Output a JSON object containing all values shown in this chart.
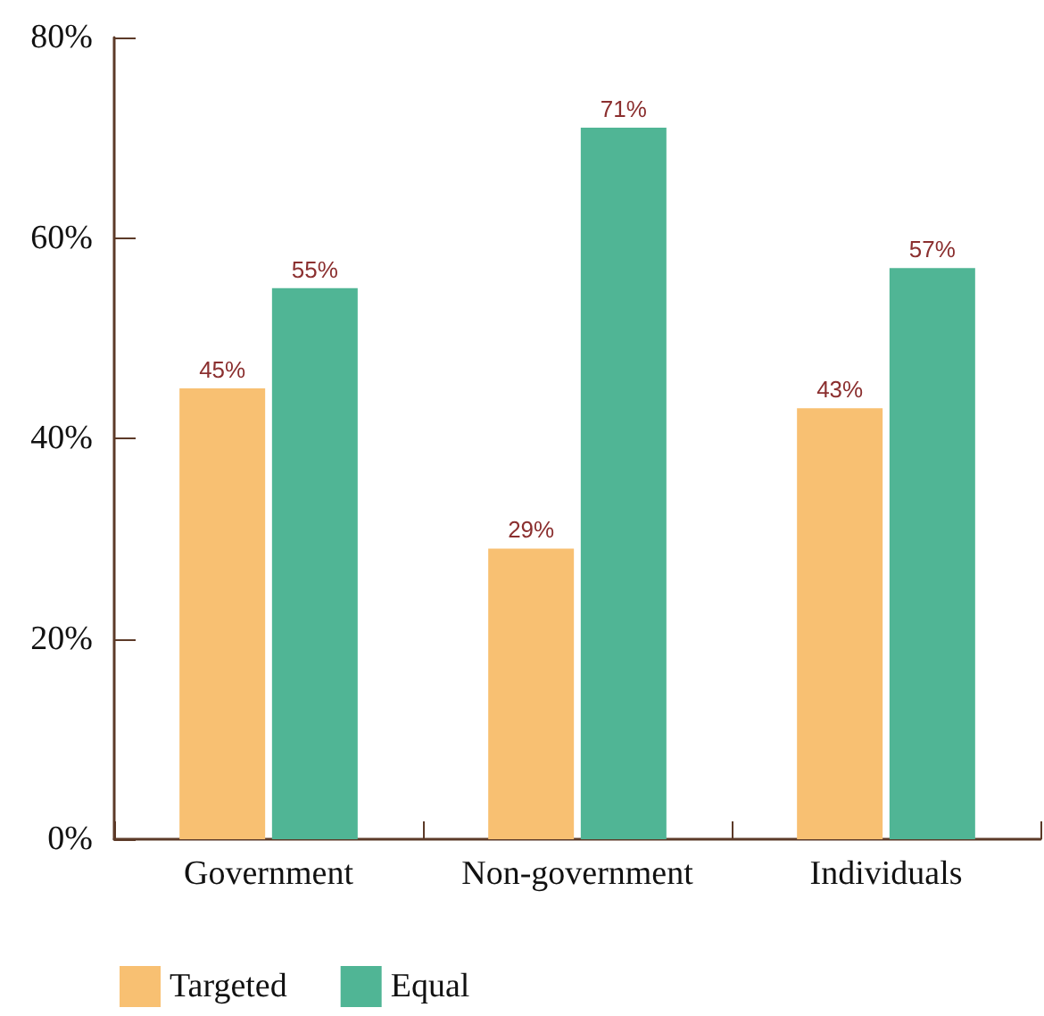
{
  "chart_data": {
    "type": "bar",
    "categories": [
      "Government",
      "Non-government",
      "Individuals"
    ],
    "series": [
      {
        "name": "Targeted",
        "color": "#f8c072",
        "values": [
          45,
          29,
          43
        ]
      },
      {
        "name": "Equal",
        "color": "#50b595",
        "values": [
          55,
          71,
          57
        ]
      }
    ],
    "ylim": [
      0,
      80
    ],
    "yticks": [
      {
        "value": 0,
        "label": "0%"
      },
      {
        "value": 20,
        "label": "20%"
      },
      {
        "value": 40,
        "label": "40%"
      },
      {
        "value": 60,
        "label": "60%"
      },
      {
        "value": 80,
        "label": "80%"
      }
    ],
    "value_labels": [
      [
        "45%",
        "29%",
        "43%"
      ],
      [
        "55%",
        "71%",
        "57%"
      ]
    ],
    "grid": false,
    "legend": "bottom left"
  }
}
